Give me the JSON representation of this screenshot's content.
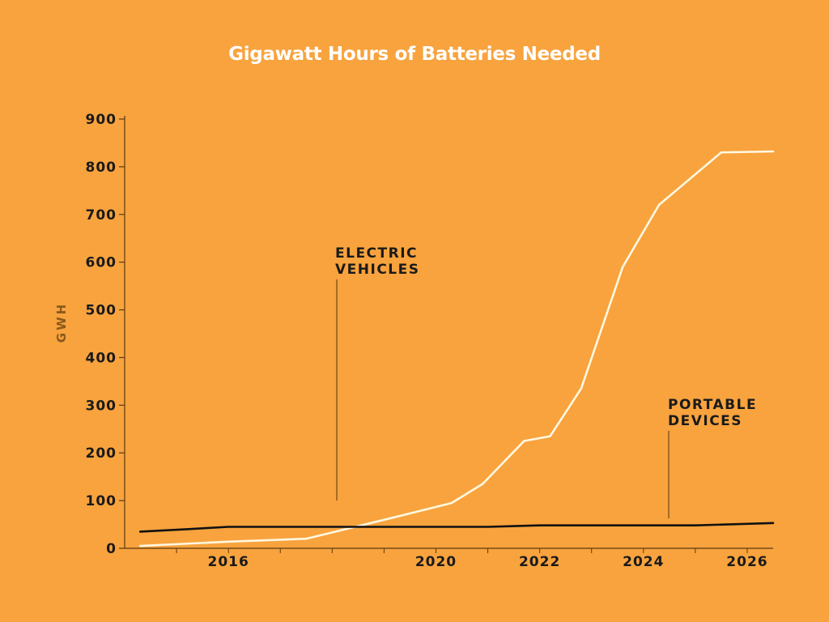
{
  "chart_data": {
    "type": "line",
    "title": "Gigawatt Hours of Batteries Needed",
    "ylabel": "GWH",
    "xlabel": "",
    "ylim": [
      0,
      900
    ],
    "xlim": [
      2014,
      2026.5
    ],
    "yticks": [
      0,
      100,
      200,
      300,
      400,
      500,
      600,
      700,
      800,
      900
    ],
    "xticks": [
      2016,
      2020,
      2022,
      2024,
      2026
    ],
    "xtick_labels": [
      "2016",
      "2020",
      "2022",
      "2024",
      "2026"
    ],
    "grid": false,
    "legend": "none",
    "series": [
      {
        "name": "ELECTRIC VEHICLES",
        "color": "#FFF8E0",
        "x": [
          2014.3,
          2016,
          2017.5,
          2019.2,
          2020.3,
          2020.9,
          2021.7,
          2022.2,
          2022.8,
          2023.6,
          2024.3,
          2025.5,
          2026.5
        ],
        "y": [
          5,
          14,
          20,
          65,
          95,
          135,
          225,
          235,
          335,
          590,
          720,
          830,
          832
        ]
      },
      {
        "name": "PORTABLE DEVICES",
        "color": "#111111",
        "x": [
          2014.3,
          2015.2,
          2016,
          2017,
          2018,
          2019,
          2020,
          2021,
          2022,
          2023,
          2024,
          2025,
          2026.5
        ],
        "y": [
          35,
          40,
          45,
          45,
          45,
          45,
          45,
          45,
          48,
          48,
          48,
          48,
          53
        ]
      }
    ],
    "annotations": [
      {
        "lines": [
          "ELECTRIC",
          "VEHICLES"
        ]
      },
      {
        "lines": [
          "PORTABLE",
          "DEVICES"
        ]
      }
    ]
  }
}
